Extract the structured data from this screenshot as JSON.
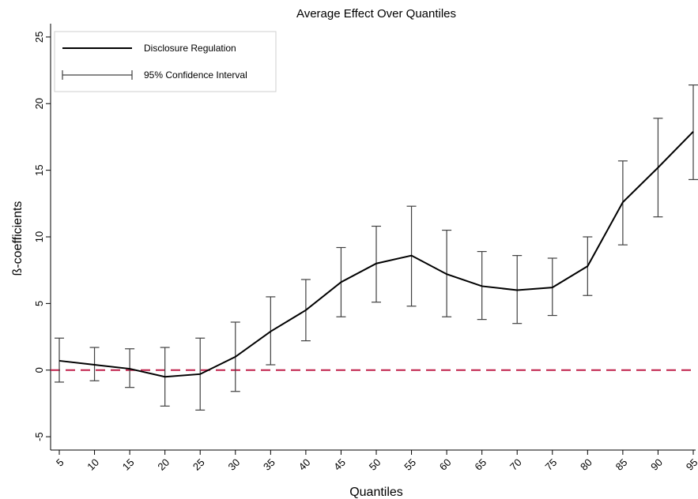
{
  "chart_data": {
    "type": "line",
    "title": "Average Effect Over Quantiles",
    "xlabel": "Quantiles",
    "ylabel": "ß-coefficients",
    "ylim": [
      -6,
      26
    ],
    "xlim": [
      4,
      96
    ],
    "yticks": [
      -5,
      0,
      5,
      10,
      15,
      20,
      25
    ],
    "x": [
      5,
      10,
      15,
      20,
      25,
      30,
      35,
      40,
      45,
      50,
      55,
      60,
      65,
      70,
      75,
      80,
      85,
      90,
      95
    ],
    "x_tick_labels": [
      "5",
      "10",
      "15",
      "20",
      "25",
      "30",
      "35",
      "40",
      "45",
      "50",
      "55",
      "60",
      "65",
      "70",
      "75",
      "80",
      "85",
      "90",
      "95"
    ],
    "series": [
      {
        "name": "Disclosure Regulation",
        "values": [
          0.7,
          0.4,
          0.1,
          -0.5,
          -0.3,
          1.0,
          2.9,
          4.5,
          6.6,
          8.0,
          8.6,
          7.2,
          6.3,
          6.0,
          6.2,
          7.8,
          12.6,
          15.2,
          17.9
        ],
        "color": "#000000"
      },
      {
        "name": "95% Confidence Interval",
        "type": "errorbar",
        "lower": [
          -0.9,
          -0.8,
          -1.3,
          -2.7,
          -3.0,
          -1.6,
          0.4,
          2.2,
          4.0,
          5.1,
          4.8,
          4.0,
          3.8,
          3.5,
          4.1,
          5.6,
          9.4,
          11.5,
          14.3
        ],
        "upper": [
          2.4,
          1.7,
          1.6,
          1.7,
          2.4,
          3.6,
          5.5,
          6.8,
          9.2,
          10.8,
          12.3,
          10.5,
          8.9,
          8.6,
          8.4,
          10.0,
          15.7,
          18.9,
          21.4
        ],
        "color": "#404040"
      }
    ],
    "reference_line": {
      "y": 0,
      "style": "dashed",
      "color": "#c0204a"
    },
    "legend": {
      "placement": "top-left",
      "entries": [
        "Disclosure Regulation",
        "95% Confidence Interval"
      ]
    },
    "grid": false
  }
}
